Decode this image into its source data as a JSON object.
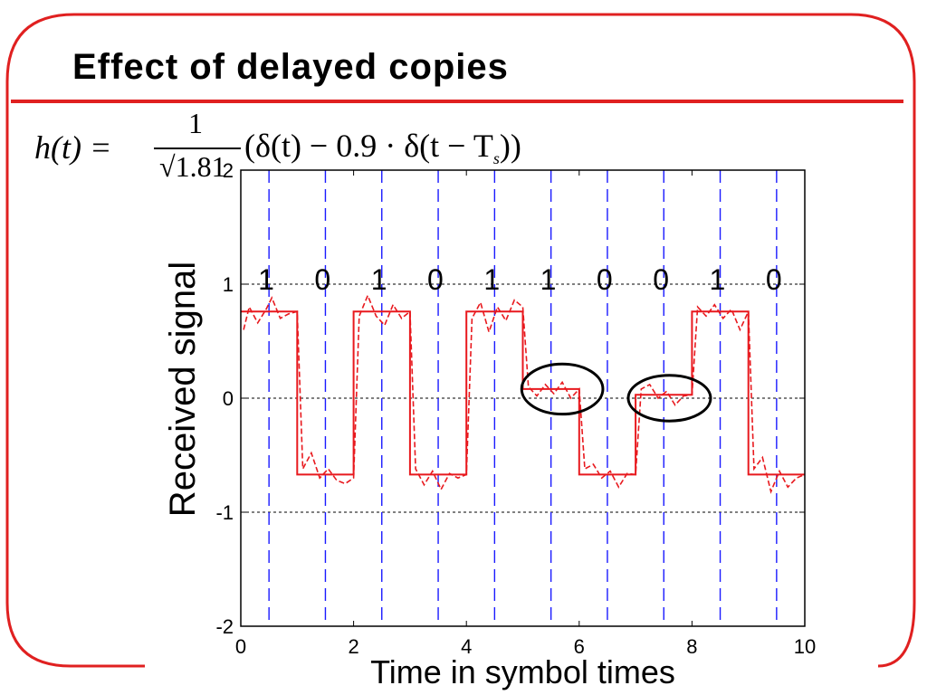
{
  "slide": {
    "title": "Effect of delayed copies",
    "formula": {
      "lhs": "h(t) =",
      "numerator": "1",
      "denominator": "√1.81",
      "rhs_prefix": "(δ(t) − 0.9 · δ(t − T",
      "rhs_sub": "s",
      "rhs_suffix": "))"
    },
    "colors": {
      "frame": "#e02020",
      "signal": "#e8191e",
      "symbol_lines": "#1a1aff",
      "circles": "#000000"
    }
  },
  "chart_data": {
    "type": "line",
    "title": "",
    "xlabel": "Time in symbol times",
    "ylabel": "Received signal",
    "xlim": [
      0,
      10
    ],
    "ylim": [
      -2,
      2
    ],
    "x_ticks": [
      "0",
      "2",
      "4",
      "6",
      "8",
      "10"
    ],
    "y_ticks": [
      "-2",
      "-1",
      "0",
      "1",
      "2"
    ],
    "grid": "dotted horizontal at -1, 0, 1",
    "bits": [
      "1",
      "0",
      "1",
      "0",
      "1",
      "1",
      "0",
      "0",
      "1",
      "0"
    ],
    "symbol_boundaries": [
      0.5,
      1.5,
      2.5,
      3.5,
      4.5,
      5.5,
      6.5,
      7.5,
      8.5,
      9.5
    ],
    "series": [
      {
        "style": "solid",
        "x": [
          0,
          1,
          1,
          2,
          2,
          3,
          3,
          4,
          4,
          5,
          5,
          6,
          6,
          7,
          7,
          8,
          8,
          9,
          9,
          10
        ],
        "y": [
          0.76,
          0.76,
          -0.67,
          -0.67,
          0.76,
          0.76,
          -0.67,
          -0.67,
          0.76,
          0.76,
          0.08,
          0.08,
          -0.67,
          -0.67,
          0.03,
          0.03,
          0.76,
          0.76,
          -0.67,
          -0.67
        ]
      },
      {
        "style": "dashed",
        "x": [
          0.05,
          0.15,
          0.3,
          0.45,
          0.55,
          0.7,
          0.85,
          1.0,
          1.1,
          1.25,
          1.4,
          1.55,
          1.7,
          1.85,
          2.0,
          2.1,
          2.25,
          2.4,
          2.55,
          2.7,
          2.85,
          3.0,
          3.1,
          3.25,
          3.4,
          3.55,
          3.7,
          3.85,
          4.0,
          4.1,
          4.25,
          4.4,
          4.55,
          4.7,
          4.85,
          5.0,
          5.1,
          5.25,
          5.4,
          5.55,
          5.7,
          5.85,
          6.0,
          6.1,
          6.25,
          6.4,
          6.55,
          6.7,
          6.85,
          7.0,
          7.1,
          7.25,
          7.4,
          7.55,
          7.7,
          7.85,
          8.0,
          8.1,
          8.25,
          8.4,
          8.55,
          8.7,
          8.85,
          9.0,
          9.1,
          9.25,
          9.4,
          9.55,
          9.7,
          9.85,
          10.0
        ],
        "y": [
          0.6,
          0.8,
          0.66,
          0.78,
          0.88,
          0.7,
          0.74,
          0.76,
          -0.62,
          -0.48,
          -0.7,
          -0.62,
          -0.72,
          -0.75,
          -0.7,
          0.72,
          0.9,
          0.72,
          0.64,
          0.82,
          0.7,
          0.76,
          -0.62,
          -0.76,
          -0.64,
          -0.8,
          -0.66,
          -0.7,
          -0.67,
          0.7,
          0.84,
          0.58,
          0.8,
          0.68,
          0.86,
          0.8,
          0.1,
          0.02,
          0.12,
          0.04,
          0.14,
          0.0,
          0.08,
          -0.62,
          -0.58,
          -0.7,
          -0.64,
          -0.78,
          -0.66,
          -0.67,
          0.08,
          0.12,
          0.0,
          0.06,
          -0.06,
          0.02,
          0.03,
          0.8,
          0.72,
          0.82,
          0.7,
          0.78,
          0.6,
          0.76,
          -0.62,
          -0.52,
          -0.82,
          -0.64,
          -0.78,
          -0.7,
          -0.67
        ]
      }
    ],
    "annotations": [
      {
        "type": "ellipse",
        "cx": 5.7,
        "cy": 0.08,
        "rx": 0.72,
        "ry": 0.22
      },
      {
        "type": "ellipse",
        "cx": 7.6,
        "cy": 0.0,
        "rx": 0.73,
        "ry": 0.2
      }
    ]
  }
}
